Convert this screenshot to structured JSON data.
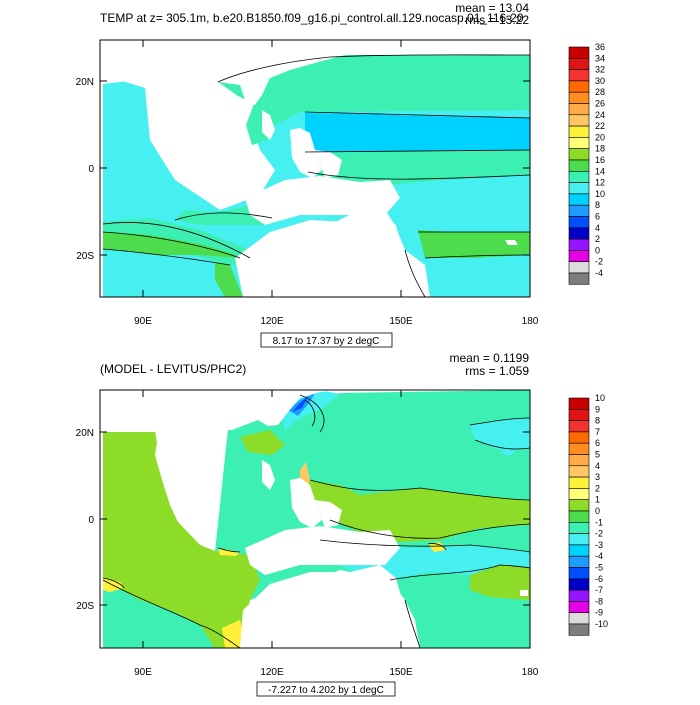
{
  "chart_data": [
    {
      "type": "contour_map",
      "title": "TEMP at z= 305.1m, b.e20.B1850.f09_g16.pi_control.all.129.nocasp.01_116-20",
      "stats": {
        "mean": "mean = 13.04",
        "rms": "rms = 13.22"
      },
      "x_ticks": [
        "90E",
        "120E",
        "150E",
        "180"
      ],
      "y_ticks": [
        "20N",
        "0",
        "20S"
      ],
      "lon_range": [
        80,
        180
      ],
      "lat_range": [
        -30,
        30
      ],
      "info_box": "8.17 to 17.37 by 2 degC",
      "colorbar": {
        "labels": [
          "36",
          "34",
          "32",
          "30",
          "28",
          "26",
          "24",
          "22",
          "20",
          "18",
          "16",
          "14",
          "12",
          "10",
          "8",
          "6",
          "4",
          "2",
          "0",
          "-2",
          "-4"
        ],
        "colors": [
          "#c80000",
          "#e01414",
          "#f53232",
          "#ff6a00",
          "#ff8c1e",
          "#ffab46",
          "#ffc864",
          "#fff03c",
          "#ffff78",
          "#8cdc28",
          "#4cdc4c",
          "#3cf0b4",
          "#46f0f0",
          "#00d2ff",
          "#1e9cff",
          "#0050ff",
          "#0000c8",
          "#9614ff",
          "#e600e6",
          "#dcdcdc",
          "#7d7d7d"
        ]
      }
    },
    {
      "type": "contour_map",
      "title": "(MODEL - LEVITUS/PHC2)",
      "stats": {
        "mean": "mean = 0.1199",
        "rms": "rms = 1.059"
      },
      "x_ticks": [
        "90E",
        "120E",
        "150E",
        "180"
      ],
      "y_ticks": [
        "20N",
        "0",
        "20S"
      ],
      "lon_range": [
        80,
        180
      ],
      "lat_range": [
        -30,
        30
      ],
      "info_box": "-7.227 to 4.202 by 1 degC",
      "colorbar": {
        "labels": [
          "10",
          "9",
          "8",
          "7",
          "6",
          "5",
          "4",
          "3",
          "2",
          "1",
          "0",
          "-1",
          "-2",
          "-3",
          "-4",
          "-5",
          "-6",
          "-7",
          "-8",
          "-9",
          "-10"
        ],
        "colors": [
          "#c80000",
          "#e01414",
          "#f53232",
          "#ff6a00",
          "#ff8c1e",
          "#ffab46",
          "#ffc864",
          "#fff03c",
          "#ffff78",
          "#8cdc28",
          "#4cdc4c",
          "#3cf0b4",
          "#46f0f0",
          "#00d2ff",
          "#1e9cff",
          "#0050ff",
          "#0000c8",
          "#9614ff",
          "#e600e6",
          "#dcdcdc",
          "#7d7d7d"
        ]
      }
    }
  ]
}
